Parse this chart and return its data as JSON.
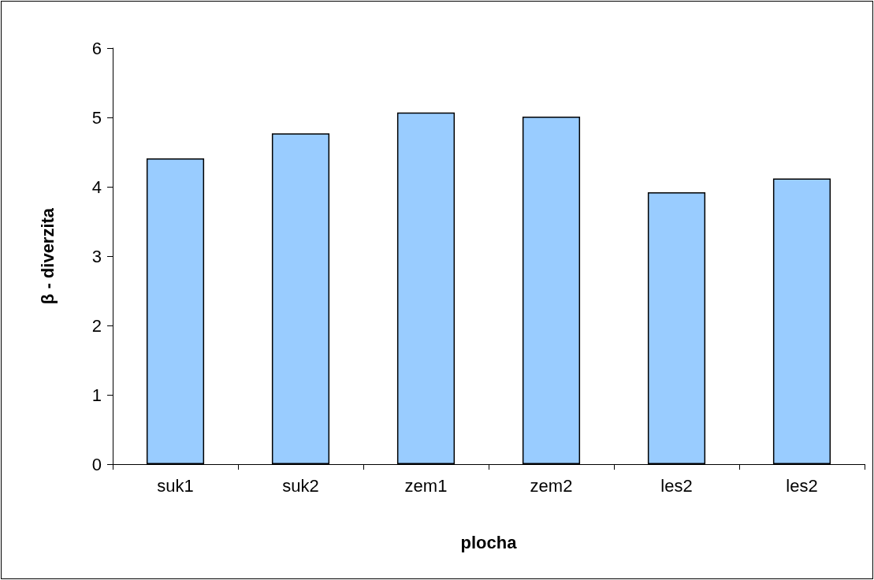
{
  "chart_data": {
    "type": "bar",
    "xlabel": "plocha",
    "ylabel": "β - diverzita",
    "categories": [
      "suk1",
      "suk2",
      "zem1",
      "zem2",
      "les2",
      "les2"
    ],
    "values": [
      4.41,
      4.77,
      5.07,
      5.01,
      3.92,
      4.12
    ],
    "color": "#99ccff",
    "ylim": [
      0,
      6
    ],
    "yticks": [
      0,
      1,
      2,
      3,
      4,
      5,
      6
    ],
    "grid": false
  }
}
